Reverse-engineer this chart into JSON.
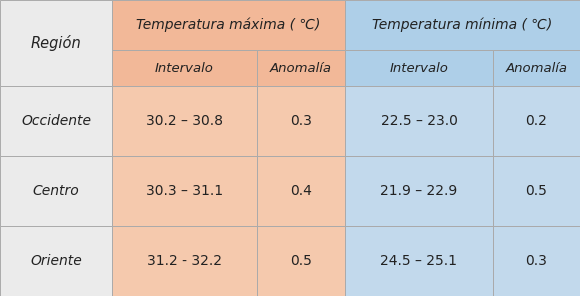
{
  "regions": [
    "Occidente",
    "Centro",
    "Oriente"
  ],
  "col_headers_top": [
    "Temperatura máxima ( ℃)",
    "Temperatura mínima ( ℃)"
  ],
  "col_headers_sub": [
    "Intervalo",
    "Anomalía",
    "Intervalo",
    "Anomalía"
  ],
  "row_header": "Región",
  "data": [
    [
      "30.2 – 30.8",
      "0.3",
      "22.5 – 23.0",
      "0.2"
    ],
    [
      "30.3 – 31.1",
      "0.4",
      "21.9 – 22.9",
      "0.5"
    ],
    [
      "31.2 - 32.2",
      "0.5",
      "24.5 – 25.1",
      "0.3"
    ]
  ],
  "color_orange_light": "#F5C9AD",
  "color_orange_header": "#F2B898",
  "color_blue_light": "#C2D9EC",
  "color_blue_header": "#AECFE8",
  "color_region": "#EBEBEB",
  "color_border": "#AAAAAA",
  "text_color": "#222222",
  "background_color": "#F0F0F0"
}
